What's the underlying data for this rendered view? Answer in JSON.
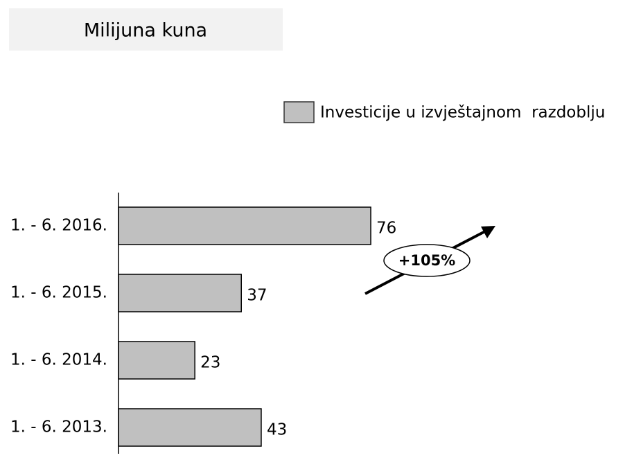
{
  "chart_data": {
    "type": "bar",
    "orientation": "horizontal",
    "title": "Milijuna kuna",
    "categories": [
      "1. - 6. 2016.",
      "1. - 6. 2015.",
      "1. - 6. 2014.",
      "1. - 6. 2013."
    ],
    "series": [
      {
        "name": "Investicije u izvještajnom  razdoblju",
        "color": "#c0c0c0",
        "values": [
          76,
          37,
          23,
          43
        ]
      }
    ],
    "annotation": "+105%",
    "legend": "top-right"
  }
}
